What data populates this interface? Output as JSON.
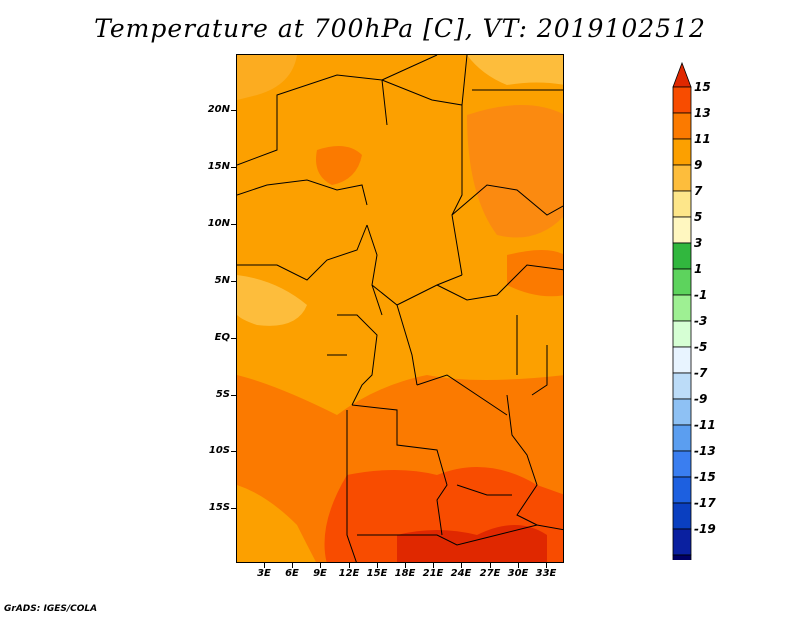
{
  "title": "Temperature at 700hPa [C], VT: 2019102512",
  "credit": "GrADS: IGES/COLA",
  "map": {
    "lat_labels": [
      "20N",
      "15N",
      "10N",
      "5N",
      "EQ",
      "5S",
      "10S",
      "15S"
    ],
    "lon_labels": [
      "3E",
      "6E",
      "9E",
      "12E",
      "15E",
      "18E",
      "21E",
      "24E",
      "27E",
      "30E",
      "33E"
    ]
  },
  "colorbar": {
    "labels": [
      "15",
      "13",
      "11",
      "9",
      "7",
      "5",
      "3",
      "1",
      "-1",
      "-3",
      "-5",
      "-7",
      "-9",
      "-11",
      "-13",
      "-15",
      "-17",
      "-19"
    ],
    "colors": [
      "#e02800",
      "#f84c00",
      "#fb7a00",
      "#fca000",
      "#fdbd3c",
      "#fde68a",
      "#fff7c0",
      "#31b73e",
      "#5dd35d",
      "#9ef093",
      "#d6ffd4",
      "#e8f4ff",
      "#bcdcf8",
      "#8ec1f4",
      "#5b9ef0",
      "#3a7ef0",
      "#1d60e0",
      "#0a3fc0",
      "#0a20a0",
      "#000064",
      "#dcdcf4"
    ]
  }
}
